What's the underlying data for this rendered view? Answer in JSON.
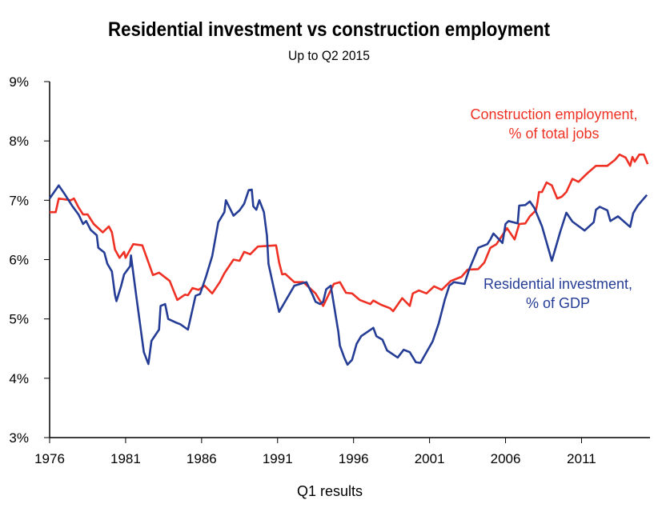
{
  "chart_data": {
    "type": "line",
    "title": "Residential investment vs construction employment",
    "subtitle": "Up to Q2 2015",
    "xlabel": "Q1 results",
    "ylabel": "",
    "xlim": [
      1976,
      2015.4
    ],
    "ylim": [
      3,
      9
    ],
    "grid": false,
    "x_ticks": [
      "1976",
      "1981",
      "1986",
      "1991",
      "1996",
      "2001",
      "2006",
      "2011"
    ],
    "x_tick_values": [
      1976,
      1981,
      1986,
      1991,
      1996,
      2001,
      2006,
      2011
    ],
    "y_ticks": [
      "3%",
      "4%",
      "5%",
      "6%",
      "7%",
      "8%",
      "9%"
    ],
    "y_tick_values": [
      3,
      4,
      5,
      6,
      7,
      8,
      9
    ],
    "series": [
      {
        "name": "Construction employment, % of total jobs",
        "label_lines": [
          "Construction employment,",
          "% of total jobs"
        ],
        "color": "#ee3124",
        "x": [
          1976.0,
          1976.4,
          1976.6,
          1977.4,
          1977.6,
          1977.9,
          1978.2,
          1978.5,
          1978.9,
          1979.5,
          1979.9,
          1980.1,
          1980.3,
          1980.6,
          1980.9,
          1981.0,
          1981.5,
          1982.1,
          1982.8,
          1983.2,
          1983.9,
          1984.4,
          1984.9,
          1985.1,
          1985.4,
          1985.8,
          1986.2,
          1986.7,
          1987.2,
          1987.5,
          1988.1,
          1988.5,
          1988.8,
          1989.2,
          1989.7,
          1990.9,
          1991.1,
          1991.3,
          1991.5,
          1992.1,
          1992.7,
          1993.5,
          1994.0,
          1994.7,
          1995.1,
          1995.5,
          1995.9,
          1996.4,
          1997.1,
          1997.3,
          1997.8,
          1998.4,
          1998.6,
          1999.2,
          1999.7,
          1999.9,
          2000.3,
          2000.8,
          2001.3,
          2001.8,
          2002.4,
          2003.1,
          2003.5,
          2004.2,
          2004.6,
          2005.0,
          2005.4,
          2006.1,
          2006.6,
          2006.9,
          2007.3,
          2007.6,
          2008.0,
          2008.1,
          2008.2,
          2008.4,
          2008.7,
          2009.05,
          2009.4,
          2009.7,
          2010.0,
          2010.4,
          2010.8,
          2011.4,
          2011.95,
          2012.7,
          2013.2,
          2013.5,
          2013.9,
          2014.2,
          2014.35,
          2014.5,
          2014.8,
          2015.1,
          2015.35
        ],
        "values": [
          6.8,
          6.8,
          7.03,
          7.0,
          7.03,
          6.88,
          6.76,
          6.76,
          6.6,
          6.46,
          6.56,
          6.46,
          6.17,
          6.03,
          6.13,
          6.03,
          6.26,
          6.24,
          5.74,
          5.78,
          5.64,
          5.32,
          5.41,
          5.4,
          5.52,
          5.49,
          5.56,
          5.43,
          5.62,
          5.77,
          6.0,
          5.98,
          6.13,
          6.09,
          6.22,
          6.24,
          5.95,
          5.75,
          5.76,
          5.62,
          5.62,
          5.43,
          5.22,
          5.59,
          5.62,
          5.44,
          5.43,
          5.32,
          5.25,
          5.31,
          5.24,
          5.18,
          5.13,
          5.35,
          5.22,
          5.43,
          5.48,
          5.43,
          5.55,
          5.49,
          5.64,
          5.71,
          5.83,
          5.84,
          5.95,
          6.2,
          6.26,
          6.53,
          6.34,
          6.6,
          6.61,
          6.73,
          6.83,
          6.96,
          7.14,
          7.14,
          7.3,
          7.25,
          7.03,
          7.06,
          7.14,
          7.36,
          7.31,
          7.46,
          7.58,
          7.58,
          7.68,
          7.77,
          7.72,
          7.58,
          7.73,
          7.65,
          7.77,
          7.77,
          7.61
        ]
      },
      {
        "name": "Residential investment, % of GDP",
        "label_lines": [
          "Residential investment,",
          "% of GDP"
        ],
        "color": "#263d96",
        "x": [
          1976.0,
          1976.6,
          1977.0,
          1977.5,
          1977.9,
          1978.2,
          1978.4,
          1978.7,
          1979.1,
          1979.2,
          1979.6,
          1979.8,
          1980.1,
          1980.3,
          1980.4,
          1980.7,
          1980.9,
          1981.3,
          1981.35,
          1981.7,
          1982.0,
          1982.2,
          1982.5,
          1982.7,
          1983.2,
          1983.3,
          1983.6,
          1983.8,
          1984.3,
          1984.6,
          1985.1,
          1985.6,
          1985.9,
          1986.3,
          1986.7,
          1987.1,
          1987.5,
          1987.6,
          1988.1,
          1988.5,
          1988.8,
          1989.1,
          1989.3,
          1989.4,
          1989.6,
          1989.8,
          1990.1,
          1990.3,
          1990.4,
          1990.8,
          1991.1,
          1992.1,
          1992.6,
          1992.9,
          1993.3,
          1993.5,
          1993.8,
          1994.0,
          1994.2,
          1994.5,
          1994.7,
          1995.0,
          1995.1,
          1995.4,
          1995.6,
          1995.9,
          1996.2,
          1996.5,
          1997.3,
          1997.5,
          1997.9,
          1998.2,
          1998.9,
          1999.3,
          1999.7,
          2000.1,
          2000.4,
          2001.2,
          2001.6,
          2002.0,
          2002.3,
          2002.6,
          2003.3,
          2003.6,
          2004.2,
          2004.8,
          2005.0,
          2005.2,
          2005.8,
          2006.0,
          2006.2,
          2006.8,
          2006.9,
          2007.3,
          2007.6,
          2007.9,
          2008.4,
          2009.05,
          2009.6,
          2010.0,
          2010.4,
          2011.2,
          2011.8,
          2011.95,
          2012.2,
          2012.7,
          2012.9,
          2013.4,
          2014.2,
          2014.4,
          2014.7,
          2015.3
        ],
        "values": [
          7.03,
          7.25,
          7.1,
          6.9,
          6.76,
          6.6,
          6.65,
          6.5,
          6.41,
          6.2,
          6.12,
          5.93,
          5.8,
          5.41,
          5.3,
          5.55,
          5.75,
          5.89,
          6.07,
          5.39,
          4.82,
          4.44,
          4.24,
          4.63,
          4.82,
          5.22,
          5.25,
          5.0,
          4.94,
          4.91,
          4.82,
          5.39,
          5.42,
          5.72,
          6.06,
          6.63,
          6.8,
          7.0,
          6.74,
          6.83,
          6.94,
          7.17,
          7.18,
          6.9,
          6.84,
          7.0,
          6.8,
          6.4,
          5.93,
          5.46,
          5.12,
          5.56,
          5.6,
          5.62,
          5.41,
          5.29,
          5.25,
          5.29,
          5.5,
          5.56,
          5.25,
          4.78,
          4.55,
          4.34,
          4.23,
          4.31,
          4.58,
          4.71,
          4.85,
          4.71,
          4.65,
          4.47,
          4.35,
          4.48,
          4.44,
          4.27,
          4.26,
          4.62,
          4.92,
          5.32,
          5.56,
          5.62,
          5.59,
          5.83,
          6.2,
          6.26,
          6.34,
          6.44,
          6.28,
          6.6,
          6.65,
          6.61,
          6.91,
          6.92,
          6.98,
          6.87,
          6.56,
          5.98,
          6.47,
          6.79,
          6.64,
          6.49,
          6.63,
          6.84,
          6.89,
          6.83,
          6.65,
          6.73,
          6.55,
          6.78,
          6.91,
          7.09
        ]
      }
    ]
  }
}
